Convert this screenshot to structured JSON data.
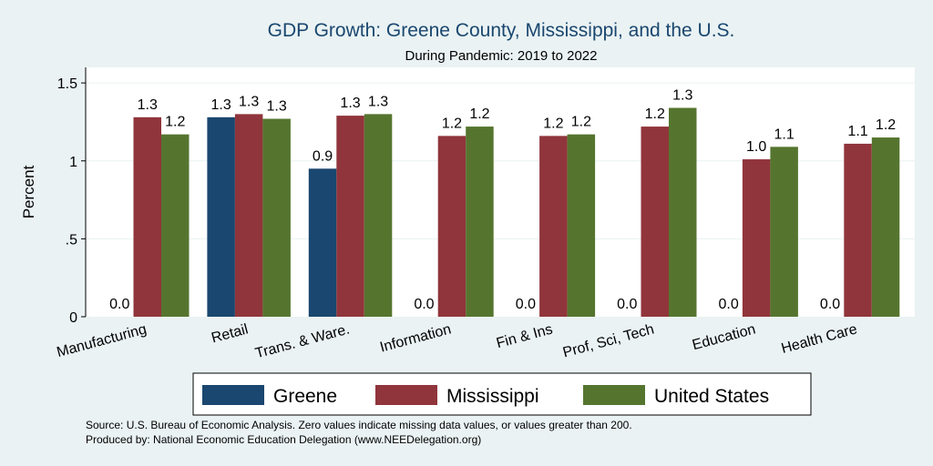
{
  "chart_data": {
    "type": "bar",
    "title": "GDP Growth: Greene County, Mississippi, and the U.S.",
    "subtitle": "During Pandemic: 2019 to 2022",
    "ylabel": "Percent",
    "xlabel": "",
    "ylim": [
      0,
      1.6
    ],
    "yticks": [
      {
        "value": 0,
        "label": "0"
      },
      {
        "value": 0.5,
        "label": ".5"
      },
      {
        "value": 1,
        "label": "1"
      },
      {
        "value": 1.5,
        "label": "1.5"
      }
    ],
    "grid": true,
    "legend_position": "bottom",
    "categories": [
      "Manufacturing",
      "Retail",
      "Trans. & Ware.",
      "Information",
      "Fin & Ins",
      "Prof, Sci, Tech",
      "Education",
      "Health Care"
    ],
    "series": [
      {
        "name": "Greene",
        "color": "#1a476f",
        "values": [
          0,
          1.28,
          0.95,
          0,
          0,
          0,
          0,
          0
        ],
        "labels": [
          "0.0",
          "1.3",
          "0.9",
          "0.0",
          "0.0",
          "0.0",
          "0.0",
          "0.0"
        ]
      },
      {
        "name": "Mississippi",
        "color": "#90353b",
        "values": [
          1.28,
          1.3,
          1.29,
          1.16,
          1.16,
          1.22,
          1.01,
          1.11
        ],
        "labels": [
          "1.3",
          "1.3",
          "1.3",
          "1.2",
          "1.2",
          "1.2",
          "1.0",
          "1.1"
        ]
      },
      {
        "name": "United States",
        "color": "#55752f",
        "values": [
          1.17,
          1.27,
          1.3,
          1.22,
          1.17,
          1.34,
          1.09,
          1.15
        ],
        "labels": [
          "1.2",
          "1.3",
          "1.3",
          "1.2",
          "1.2",
          "1.3",
          "1.1",
          "1.2"
        ]
      }
    ]
  },
  "footer": {
    "source": "Source: U.S. Bureau of Economic Analysis. Zero values indicate missing data values, or values greater than 200.",
    "produced_by": "Produced by: National Economic Education Delegation (www.NEEDelegation.org)"
  }
}
